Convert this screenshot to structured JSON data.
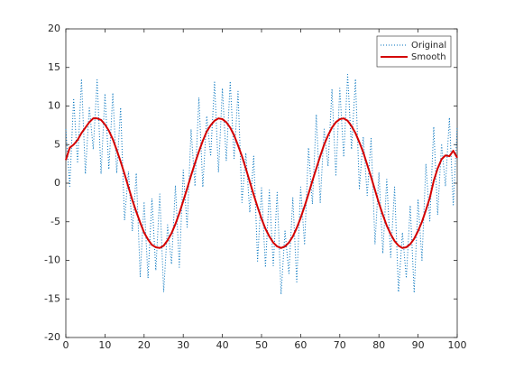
{
  "chart_data": {
    "type": "line",
    "x": [
      0,
      1,
      2,
      3,
      4,
      5,
      6,
      7,
      8,
      9,
      10,
      11,
      12,
      13,
      14,
      15,
      16,
      17,
      18,
      19,
      20,
      21,
      22,
      23,
      24,
      25,
      26,
      27,
      28,
      29,
      30,
      31,
      32,
      33,
      34,
      35,
      36,
      37,
      38,
      39,
      40,
      41,
      42,
      43,
      44,
      45,
      46,
      47,
      48,
      49,
      50,
      51,
      52,
      53,
      54,
      55,
      56,
      57,
      58,
      59,
      60,
      61,
      62,
      63,
      64,
      65,
      66,
      67,
      68,
      69,
      70,
      71,
      72,
      73,
      74,
      75,
      76,
      77,
      78,
      79,
      80,
      81,
      82,
      83,
      84,
      85,
      86,
      87,
      88,
      89,
      90,
      91,
      92,
      93,
      94,
      95,
      96,
      97,
      98,
      99,
      100
    ],
    "series": [
      {
        "name": "Original",
        "color": "#0072bd",
        "style": "dotted",
        "values": [
          7.0,
          -0.4,
          11.0,
          2.6,
          13.5,
          1.2,
          9.9,
          4.4,
          13.4,
          1.2,
          11.6,
          1.8,
          11.7,
          1.3,
          9.8,
          -4.8,
          1.5,
          -6.2,
          1.3,
          -12.1,
          -2.4,
          -12.3,
          -2.0,
          -11.3,
          -1.4,
          -14.1,
          -5.4,
          -10.5,
          -0.3,
          -10.9,
          1.7,
          -5.7,
          7.0,
          -0.4,
          11.1,
          -0.5,
          8.7,
          3.5,
          13.1,
          1.4,
          12.3,
          2.9,
          13.2,
          3.2,
          11.9,
          -2.5,
          3.9,
          -3.8,
          3.5,
          -10.1,
          -0.6,
          -10.9,
          -0.9,
          -10.7,
          -1.2,
          -14.4,
          -6.2,
          -11.7,
          -1.9,
          -12.8,
          -0.5,
          -8.0,
          4.6,
          -2.7,
          8.9,
          -2.5,
          7.0,
          2.2,
          12.2,
          0.9,
          12.3,
          3.4,
          14.1,
          4.4,
          13.5,
          -0.7,
          6.0,
          -1.6,
          5.8,
          -7.9,
          1.4,
          -9.1,
          0.5,
          -9.6,
          -0.5,
          -14.1,
          -6.4,
          -12.3,
          -2.9,
          -14.2,
          -2.2,
          -10.0,
          2.5,
          -4.9,
          7.3,
          -4.1,
          5.1,
          -0.4,
          8.5,
          -2.8,
          7.3
        ]
      },
      {
        "name": "Smooth",
        "color": "#d40000",
        "style": "solid",
        "values": [
          3.0,
          4.6,
          5.0,
          5.6,
          6.5,
          7.2,
          7.9,
          8.4,
          8.4,
          8.2,
          7.6,
          6.8,
          5.7,
          4.3,
          2.8,
          1.2,
          -0.5,
          -2.2,
          -3.7,
          -5.1,
          -6.4,
          -7.3,
          -8.0,
          -8.3,
          -8.4,
          -8.1,
          -7.4,
          -6.5,
          -5.3,
          -3.9,
          -2.3,
          -0.7,
          1.0,
          2.6,
          4.1,
          5.5,
          6.7,
          7.5,
          8.1,
          8.4,
          8.3,
          7.9,
          7.2,
          6.2,
          4.9,
          3.5,
          1.9,
          0.2,
          -1.5,
          -3.1,
          -4.6,
          -5.9,
          -6.9,
          -7.7,
          -8.2,
          -8.4,
          -8.2,
          -7.7,
          -6.9,
          -5.8,
          -4.5,
          -3.0,
          -1.4,
          0.3,
          1.9,
          3.5,
          5.0,
          6.2,
          7.2,
          7.9,
          8.3,
          8.4,
          8.1,
          7.4,
          6.5,
          5.3,
          4.0,
          2.4,
          0.8,
          -0.9,
          -2.6,
          -4.1,
          -5.5,
          -6.6,
          -7.5,
          -8.1,
          -8.4,
          -8.3,
          -7.9,
          -7.2,
          -6.2,
          -5.0,
          -3.5,
          -1.9,
          0.3,
          1.9,
          3.1,
          3.6,
          3.5,
          4.2,
          3.3
        ]
      }
    ],
    "xlim": [
      0,
      100
    ],
    "xticks": [
      0,
      10,
      20,
      30,
      40,
      50,
      60,
      70,
      80,
      90,
      100
    ],
    "ylim": [
      -20,
      20
    ],
    "yticks": [
      -20,
      -15,
      -10,
      -5,
      0,
      5,
      10,
      15,
      20
    ],
    "legend": "northeast",
    "grid": false
  }
}
